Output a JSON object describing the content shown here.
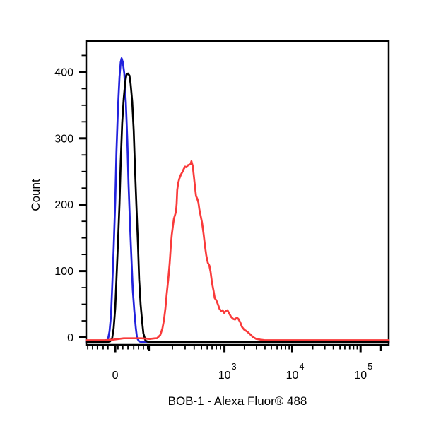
{
  "figure": {
    "background": "#ffffff"
  },
  "chart_data": {
    "type": "line",
    "title": "",
    "xlabel": "BOB-1 - Alexa Fluor® 488",
    "ylabel": "Count",
    "legend": "none",
    "x_axis": {
      "scale": "biexponential (linear near 0, logarithmic above ~10^2)",
      "range_note": "axis spans ~-100 to ~2.6x10^5",
      "major_ticks": [
        {
          "base": "0",
          "exp": "",
          "frac": 0.096
        },
        {
          "base": "10",
          "exp": "3",
          "frac": 0.457
        },
        {
          "base": "10",
          "exp": "4",
          "frac": 0.681
        },
        {
          "base": "10",
          "exp": "5",
          "frac": 0.907
        }
      ],
      "medium_ticks": [
        0.208,
        0.974
      ],
      "minor_ticks": [
        0.005,
        0.021,
        0.037,
        0.056,
        0.072,
        0.105,
        0.121,
        0.138,
        0.157,
        0.173,
        0.189,
        0.203,
        0.285,
        0.327,
        0.357,
        0.381,
        0.4,
        0.416,
        0.43,
        0.444,
        0.523,
        0.563,
        0.591,
        0.612,
        0.631,
        0.645,
        0.659,
        0.671,
        0.749,
        0.789,
        0.817,
        0.839,
        0.855,
        0.871,
        0.884,
        0.896
      ]
    },
    "y_axis": {
      "min": 0,
      "max": 447,
      "major_ticks": [
        {
          "label": "0",
          "value": 0
        },
        {
          "label": "100",
          "value": 100
        },
        {
          "label": "200",
          "value": 200
        },
        {
          "label": "300",
          "value": 300
        },
        {
          "label": "400",
          "value": 400
        }
      ],
      "minor_ticks": [
        25,
        50,
        75,
        125,
        150,
        175,
        225,
        250,
        275,
        325,
        350,
        375,
        425
      ]
    },
    "series": [
      {
        "name": "blue-curve",
        "color": "#2222dd",
        "peak": {
          "frac": 0.117,
          "count": 425
        },
        "points": [
          [
            0,
            0
          ],
          [
            0.04,
            0
          ],
          [
            0.056,
            0
          ],
          [
            0.065,
            1
          ],
          [
            0.072,
            4
          ],
          [
            0.077,
            16
          ],
          [
            0.082,
            40
          ],
          [
            0.086,
            83
          ],
          [
            0.091,
            141
          ],
          [
            0.096,
            211
          ],
          [
            0.1,
            285
          ],
          [
            0.105,
            349
          ],
          [
            0.11,
            397
          ],
          [
            0.114,
            419
          ],
          [
            0.117,
            425
          ],
          [
            0.121,
            419
          ],
          [
            0.126,
            402
          ],
          [
            0.131,
            359
          ],
          [
            0.136,
            301
          ],
          [
            0.14,
            237
          ],
          [
            0.145,
            173
          ],
          [
            0.15,
            120
          ],
          [
            0.154,
            78
          ],
          [
            0.159,
            46
          ],
          [
            0.164,
            21
          ],
          [
            0.168,
            6
          ],
          [
            0.175,
            1
          ],
          [
            0.182,
            0
          ],
          [
            0.3,
            0
          ],
          [
            0.65,
            0
          ],
          [
            1,
            0
          ]
        ]
      },
      {
        "name": "black-curve",
        "color": "#000000",
        "peak": {
          "frac": 0.138,
          "count": 402
        },
        "points": [
          [
            0,
            0
          ],
          [
            0.05,
            0
          ],
          [
            0.07,
            0
          ],
          [
            0.079,
            1
          ],
          [
            0.086,
            6
          ],
          [
            0.091,
            21
          ],
          [
            0.096,
            51
          ],
          [
            0.1,
            94
          ],
          [
            0.105,
            147
          ],
          [
            0.11,
            207
          ],
          [
            0.114,
            269
          ],
          [
            0.119,
            328
          ],
          [
            0.124,
            365
          ],
          [
            0.129,
            389
          ],
          [
            0.133,
            400
          ],
          [
            0.138,
            402
          ],
          [
            0.143,
            399
          ],
          [
            0.147,
            386
          ],
          [
            0.152,
            360
          ],
          [
            0.157,
            317
          ],
          [
            0.161,
            264
          ],
          [
            0.166,
            205
          ],
          [
            0.171,
            147
          ],
          [
            0.175,
            94
          ],
          [
            0.18,
            56
          ],
          [
            0.185,
            30
          ],
          [
            0.189,
            13
          ],
          [
            0.196,
            2
          ],
          [
            0.206,
            0
          ],
          [
            0.4,
            0
          ],
          [
            0.75,
            0
          ],
          [
            1,
            0
          ]
        ]
      },
      {
        "name": "red-curve",
        "color": "#f93b3b",
        "peak": {
          "frac": 0.348,
          "count": 268
        },
        "points": [
          [
            0,
            0
          ],
          [
            0.06,
            0
          ],
          [
            0.09,
            1
          ],
          [
            0.107,
            2
          ],
          [
            0.124,
            3
          ],
          [
            0.15,
            3
          ],
          [
            0.182,
            3
          ],
          [
            0.21,
            2
          ],
          [
            0.228,
            3
          ],
          [
            0.234,
            3
          ],
          [
            0.245,
            8
          ],
          [
            0.252,
            18
          ],
          [
            0.257,
            30
          ],
          [
            0.262,
            48
          ],
          [
            0.266,
            68
          ],
          [
            0.271,
            90
          ],
          [
            0.276,
            115
          ],
          [
            0.28,
            142
          ],
          [
            0.283,
            158
          ],
          [
            0.287,
            172
          ],
          [
            0.29,
            182
          ],
          [
            0.294,
            188
          ],
          [
            0.297,
            193
          ],
          [
            0.299,
            205
          ],
          [
            0.301,
            225
          ],
          [
            0.304,
            235
          ],
          [
            0.308,
            242
          ],
          [
            0.313,
            248
          ],
          [
            0.318,
            252
          ],
          [
            0.322,
            256
          ],
          [
            0.327,
            260
          ],
          [
            0.332,
            259
          ],
          [
            0.336,
            262
          ],
          [
            0.341,
            263
          ],
          [
            0.345,
            264
          ],
          [
            0.348,
            268
          ],
          [
            0.352,
            261
          ],
          [
            0.355,
            250
          ],
          [
            0.36,
            228
          ],
          [
            0.363,
            216
          ],
          [
            0.367,
            212
          ],
          [
            0.371,
            206
          ],
          [
            0.374,
            196
          ],
          [
            0.379,
            185
          ],
          [
            0.383,
            176
          ],
          [
            0.388,
            159
          ],
          [
            0.393,
            140
          ],
          [
            0.397,
            127
          ],
          [
            0.402,
            116
          ],
          [
            0.407,
            112
          ],
          [
            0.411,
            103
          ],
          [
            0.416,
            86
          ],
          [
            0.421,
            74
          ],
          [
            0.425,
            63
          ],
          [
            0.43,
            60
          ],
          [
            0.436,
            53
          ],
          [
            0.441,
            47
          ],
          [
            0.446,
            44
          ],
          [
            0.451,
            45
          ],
          [
            0.456,
            41
          ],
          [
            0.462,
            44
          ],
          [
            0.467,
            45
          ],
          [
            0.473,
            40
          ],
          [
            0.479,
            35
          ],
          [
            0.486,
            32
          ],
          [
            0.492,
            31
          ],
          [
            0.498,
            34
          ],
          [
            0.503,
            32
          ],
          [
            0.509,
            27
          ],
          [
            0.515,
            20
          ],
          [
            0.522,
            16
          ],
          [
            0.532,
            13
          ],
          [
            0.542,
            9
          ],
          [
            0.551,
            5
          ],
          [
            0.562,
            2
          ],
          [
            0.575,
            1
          ],
          [
            0.59,
            0
          ],
          [
            0.7,
            0
          ],
          [
            0.85,
            0
          ],
          [
            1,
            0
          ]
        ]
      }
    ]
  }
}
